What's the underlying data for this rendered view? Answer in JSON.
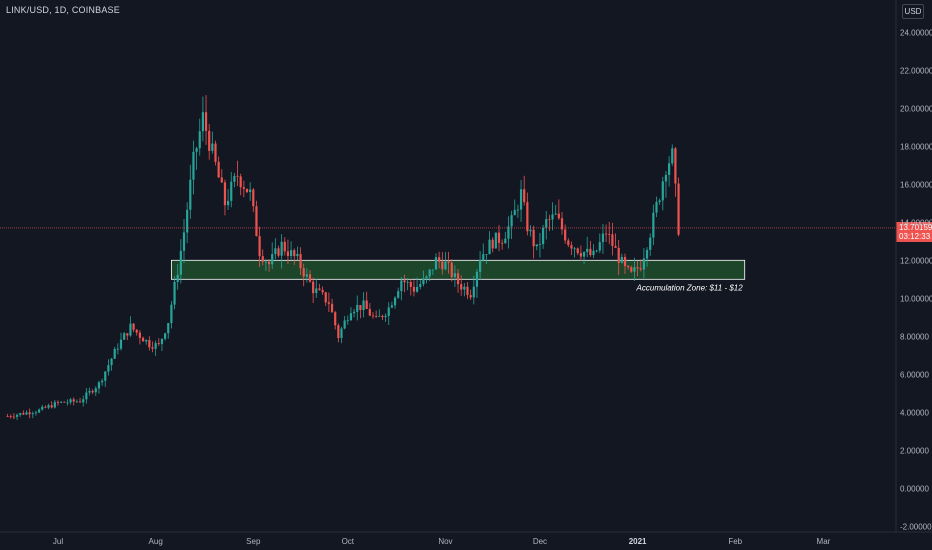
{
  "header": {
    "symbol_title": "LINK/USD, 1D, COINBASE",
    "currency": "USD"
  },
  "price_label": {
    "price": "13.70159",
    "countdown": "03:12:33"
  },
  "zone_annotation": "Accumulation Zone: $11 - $12",
  "colors": {
    "background": "#131722",
    "up_candle": "#26a69a",
    "down_candle": "#ef5350",
    "price_line": "#ef5350",
    "zone_fill": "#1f4d2c",
    "zone_border": "#ffffff",
    "axis_text": "#b2b5be"
  },
  "chart_data": {
    "type": "candlestick",
    "title": "LINK/USD, 1D, COINBASE",
    "currency": "USD",
    "ylim": [
      -2.3,
      25.7
    ],
    "y_ticks": [
      "24.00000",
      "22.00000",
      "20.00000",
      "18.00000",
      "16.00000",
      "14.00000",
      "12.00000",
      "10.00000",
      "8.00000",
      "6.00000",
      "4.00000",
      "2.00000",
      "0.00000",
      "-2.00000"
    ],
    "x_ticks": [
      "Jul",
      "Aug",
      "Sep",
      "Oct",
      "Nov",
      "Dec",
      "2021",
      "Feb",
      "Mar"
    ],
    "last_price": 13.70159,
    "zone": {
      "low": 11,
      "high": 12,
      "start": "2020-08-06",
      "end": "2021-02-04"
    },
    "legend_position": "none",
    "grid": false,
    "ohlc_anchor_points": [
      [
        "2020-06-15",
        3.8
      ],
      [
        "2020-06-25",
        4.1
      ],
      [
        "2020-07-01",
        4.5
      ],
      [
        "2020-07-08",
        4.6
      ],
      [
        "2020-07-14",
        5.5
      ],
      [
        "2020-07-20",
        7.5
      ],
      [
        "2020-07-24",
        8.5
      ],
      [
        "2020-07-30",
        7.6
      ],
      [
        "2020-08-02",
        7.5
      ],
      [
        "2020-08-05",
        8.8
      ],
      [
        "2020-08-08",
        11.5
      ],
      [
        "2020-08-10",
        13.5
      ],
      [
        "2020-08-13",
        17.2
      ],
      [
        "2020-08-16",
        19.5
      ],
      [
        "2020-08-20",
        17.0
      ],
      [
        "2020-08-23",
        15.0
      ],
      [
        "2020-08-27",
        16.5
      ],
      [
        "2020-08-31",
        15.5
      ],
      [
        "2020-09-03",
        12.5
      ],
      [
        "2020-09-06",
        11.8
      ],
      [
        "2020-09-10",
        12.8
      ],
      [
        "2020-09-15",
        12.0
      ],
      [
        "2020-09-20",
        10.5
      ],
      [
        "2020-09-25",
        9.8
      ],
      [
        "2020-09-28",
        8.0
      ],
      [
        "2020-10-02",
        9.5
      ],
      [
        "2020-10-06",
        9.6
      ],
      [
        "2020-10-10",
        8.8
      ],
      [
        "2020-10-14",
        9.5
      ],
      [
        "2020-10-18",
        11.0
      ],
      [
        "2020-10-22",
        10.5
      ],
      [
        "2020-10-26",
        11.0
      ],
      [
        "2020-10-29",
        12.0
      ],
      [
        "2020-11-01",
        11.8
      ],
      [
        "2020-11-05",
        10.8
      ],
      [
        "2020-11-09",
        10.3
      ],
      [
        "2020-11-12",
        12.2
      ],
      [
        "2020-11-16",
        13.0
      ],
      [
        "2020-11-19",
        13.2
      ],
      [
        "2020-11-22",
        14.0
      ],
      [
        "2020-11-25",
        15.5
      ],
      [
        "2020-11-27",
        13.8
      ],
      [
        "2020-11-30",
        12.5
      ],
      [
        "2020-12-03",
        14.0
      ],
      [
        "2020-12-06",
        14.3
      ],
      [
        "2020-12-10",
        13.0
      ],
      [
        "2020-12-14",
        12.5
      ],
      [
        "2020-12-18",
        12.2
      ],
      [
        "2020-12-22",
        13.5
      ],
      [
        "2020-12-25",
        12.5
      ],
      [
        "2020-12-28",
        11.5
      ],
      [
        "2020-12-30",
        11.2
      ],
      [
        "2021-01-02",
        11.8
      ],
      [
        "2021-01-05",
        13.5
      ],
      [
        "2021-01-08",
        15.5
      ],
      [
        "2021-01-10",
        17.0
      ],
      [
        "2021-01-12",
        17.5
      ],
      [
        "2021-01-14",
        13.7
      ]
    ]
  }
}
